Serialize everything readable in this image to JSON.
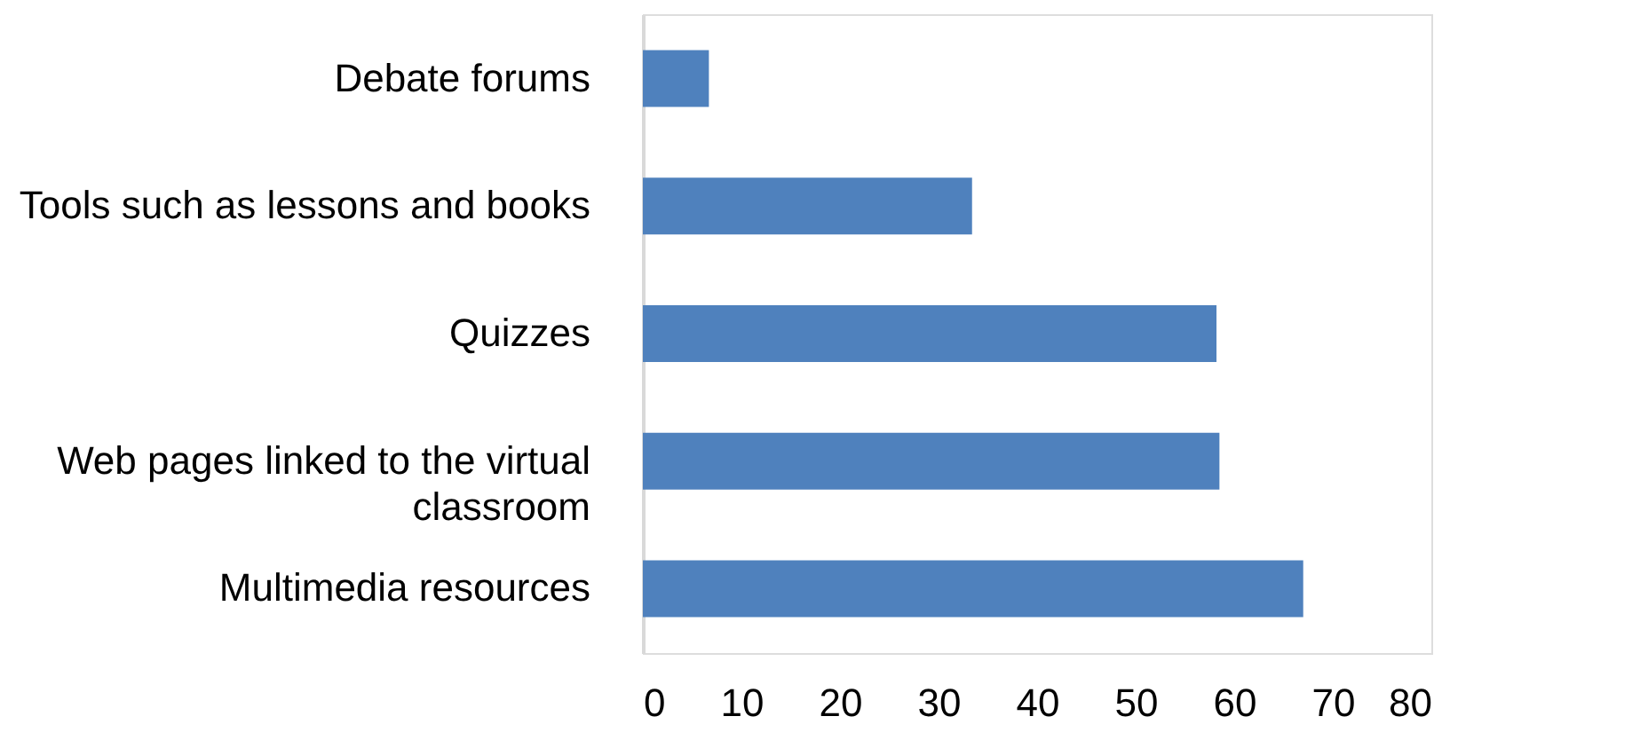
{
  "chart_data": {
    "type": "bar",
    "orientation": "horizontal",
    "categories": [
      "Debate forums",
      "Tools such as lessons and books",
      "Quizzes",
      "Web pages linked to the virtual classroom",
      "Multimedia resources"
    ],
    "values": [
      6.7,
      33.4,
      58.2,
      58.5,
      67.0
    ],
    "color": "#4f81bd",
    "xlim": [
      0,
      80
    ],
    "xticks": [
      0,
      10,
      20,
      30,
      40,
      50,
      60,
      70,
      80
    ],
    "grid": false
  }
}
